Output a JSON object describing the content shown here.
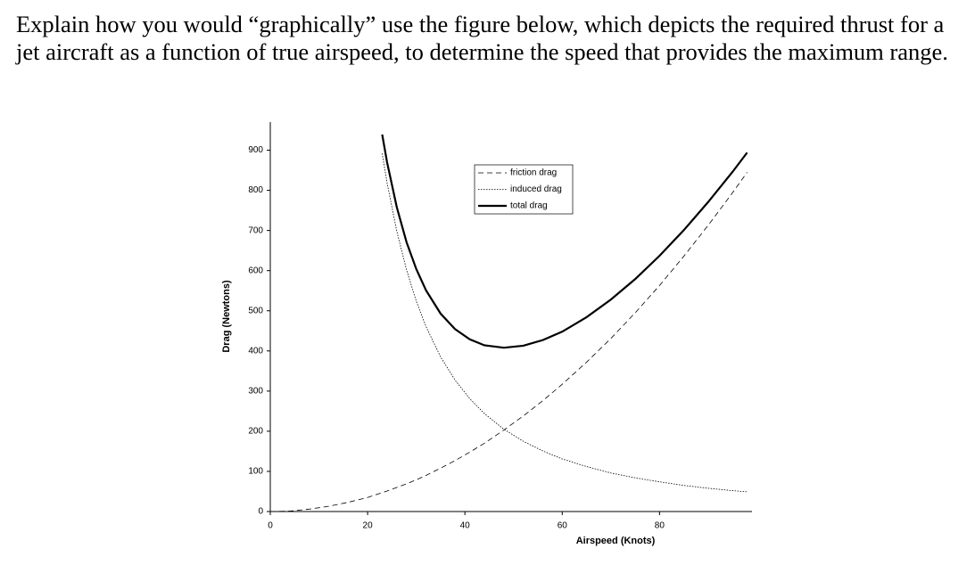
{
  "question": "Explain how you would “graphically” use the figure below, which depicts the required thrust for a jet aircraft as a function of true airspeed, to determine the speed that provides the maximum range.",
  "chart_data": {
    "type": "line",
    "xlabel": "Airspeed (Knots)",
    "ylabel": "Drag (Newtons)",
    "x": [
      0,
      4,
      8,
      12,
      16,
      20,
      23,
      24,
      26,
      28,
      30,
      32,
      35,
      38,
      41,
      44,
      48,
      52,
      56,
      60,
      65,
      70,
      75,
      80,
      85,
      90,
      95,
      98
    ],
    "series": [
      {
        "name": "friction drag",
        "color": "#000000",
        "style": "dashed",
        "values": [
          0,
          1,
          6,
          13,
          23,
          35,
          47,
          51,
          60,
          69,
          79,
          90,
          108,
          127,
          148,
          170,
          203,
          238,
          276,
          317,
          372,
          431,
          495,
          563,
          636,
          713,
          794,
          845
        ]
      },
      {
        "name": "induced drag",
        "color": "#000000",
        "style": "dotted",
        "values": [
          null,
          null,
          null,
          null,
          null,
          null,
          892,
          819,
          698,
          602,
          524,
          461,
          385,
          327,
          281,
          244,
          205,
          175,
          151,
          131,
          112,
          96,
          84,
          74,
          65,
          58,
          52,
          49
        ]
      },
      {
        "name": "total drag",
        "color": "#000000",
        "style": "solid",
        "values": [
          null,
          null,
          null,
          null,
          null,
          null,
          939,
          870,
          758,
          671,
          604,
          551,
          493,
          454,
          429,
          414,
          408,
          413,
          427,
          448,
          484,
          528,
          579,
          637,
          701,
          771,
          846,
          894
        ]
      }
    ],
    "xlim": [
      0,
      99
    ],
    "xticks": [
      0,
      20,
      40,
      60,
      80
    ],
    "ylim": [
      0,
      970
    ],
    "yticks": [
      0,
      100,
      200,
      300,
      400,
      500,
      600,
      700,
      800,
      900
    ],
    "legend": "top-center"
  }
}
